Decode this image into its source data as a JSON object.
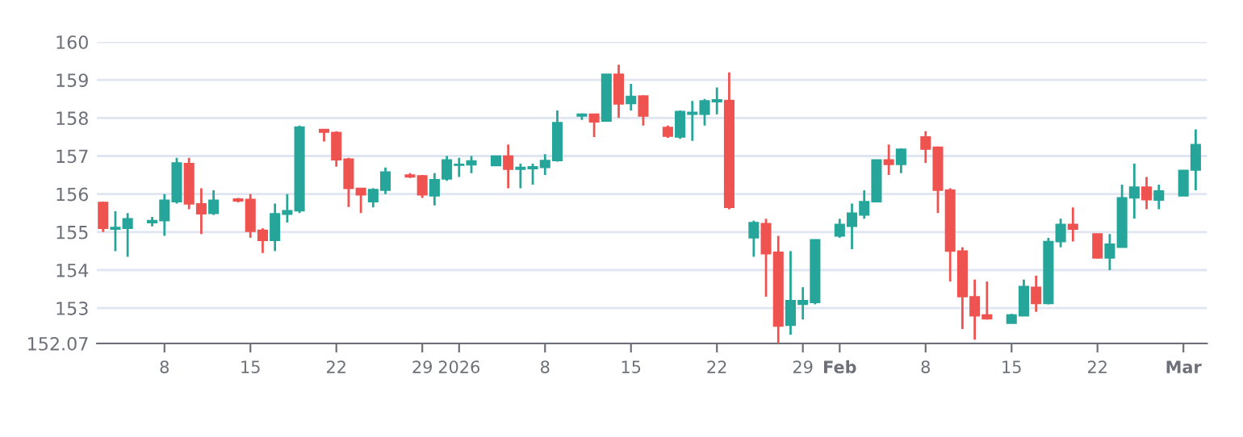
{
  "chart_data": {
    "type": "candlestick",
    "x": [
      "2025-12-03",
      "2025-12-04",
      "2025-12-05",
      "2025-12-07",
      "2025-12-08",
      "2025-12-09",
      "2025-12-10",
      "2025-12-11",
      "2025-12-12",
      "2025-12-14",
      "2025-12-15",
      "2025-12-16",
      "2025-12-17",
      "2025-12-18",
      "2025-12-19",
      "2025-12-21",
      "2025-12-22",
      "2025-12-23",
      "2025-12-24",
      "2025-12-25",
      "2025-12-26",
      "2025-12-28",
      "2025-12-29",
      "2025-12-30",
      "2025-12-31",
      "2026-01-01",
      "2026-01-02",
      "2026-01-04",
      "2026-01-05",
      "2026-01-06",
      "2026-01-07",
      "2026-01-08",
      "2026-01-09",
      "2026-01-11",
      "2026-01-12",
      "2026-01-13",
      "2026-01-14",
      "2026-01-15",
      "2026-01-16",
      "2026-01-18",
      "2026-01-19",
      "2026-01-20",
      "2026-01-21",
      "2026-01-22",
      "2026-01-23",
      "2026-01-25",
      "2026-01-26",
      "2026-01-27",
      "2026-01-28",
      "2026-01-29",
      "2026-01-30",
      "2026-02-01",
      "2026-02-02",
      "2026-02-03",
      "2026-02-04",
      "2026-02-05",
      "2026-02-06",
      "2026-02-08",
      "2026-02-09",
      "2026-02-10",
      "2026-02-11",
      "2026-02-12",
      "2026-02-13",
      "2026-02-15",
      "2026-02-16",
      "2026-02-17",
      "2026-02-18",
      "2026-02-19",
      "2026-02-20",
      "2026-02-22",
      "2026-02-23",
      "2026-02-24",
      "2026-02-25",
      "2026-02-26",
      "2026-02-27",
      "2026-03-01",
      "2026-03-02"
    ],
    "ohlc": [
      [
        155.78,
        155.8,
        155.0,
        155.1
      ],
      [
        155.08,
        155.55,
        154.5,
        155.12
      ],
      [
        155.1,
        155.5,
        154.35,
        155.35
      ],
      [
        155.25,
        155.4,
        155.15,
        155.3
      ],
      [
        155.3,
        156.0,
        154.9,
        155.84
      ],
      [
        155.8,
        156.95,
        155.75,
        156.82
      ],
      [
        156.8,
        156.95,
        155.6,
        155.74
      ],
      [
        155.74,
        156.15,
        154.95,
        155.48
      ],
      [
        155.49,
        156.1,
        155.45,
        155.84
      ],
      [
        155.87,
        155.9,
        155.78,
        155.82
      ],
      [
        155.86,
        156.0,
        154.85,
        155.02
      ],
      [
        155.05,
        155.1,
        154.45,
        154.78
      ],
      [
        154.78,
        155.75,
        154.5,
        155.48
      ],
      [
        155.47,
        156.0,
        155.25,
        155.56
      ],
      [
        155.56,
        157.8,
        155.5,
        157.76
      ],
      [
        157.7,
        157.7,
        157.38,
        157.63
      ],
      [
        157.62,
        157.65,
        156.72,
        156.9
      ],
      [
        156.92,
        156.95,
        155.66,
        156.15
      ],
      [
        156.15,
        156.15,
        155.5,
        155.98
      ],
      [
        155.8,
        156.15,
        155.65,
        156.12
      ],
      [
        156.1,
        156.7,
        156.0,
        156.58
      ],
      [
        156.5,
        156.55,
        156.42,
        156.45
      ],
      [
        156.48,
        156.5,
        155.9,
        155.98
      ],
      [
        155.95,
        156.55,
        155.7,
        156.38
      ],
      [
        156.4,
        157.0,
        156.35,
        156.9
      ],
      [
        156.76,
        156.95,
        156.45,
        156.78
      ],
      [
        156.77,
        157.0,
        156.55,
        156.87
      ],
      [
        156.75,
        157.0,
        156.75,
        157.0
      ],
      [
        157.0,
        157.3,
        156.15,
        156.65
      ],
      [
        156.65,
        156.8,
        156.15,
        156.7
      ],
      [
        156.67,
        156.8,
        156.25,
        156.72
      ],
      [
        156.7,
        157.05,
        156.5,
        156.88
      ],
      [
        156.88,
        158.2,
        156.85,
        157.88
      ],
      [
        158.05,
        158.12,
        157.95,
        158.1
      ],
      [
        158.1,
        158.1,
        157.5,
        157.9
      ],
      [
        157.92,
        159.15,
        157.9,
        159.15
      ],
      [
        159.15,
        159.4,
        158.0,
        158.37
      ],
      [
        158.38,
        158.9,
        158.2,
        158.57
      ],
      [
        158.58,
        158.6,
        157.8,
        158.05
      ],
      [
        157.75,
        157.8,
        157.48,
        157.52
      ],
      [
        157.5,
        158.2,
        157.45,
        158.17
      ],
      [
        158.1,
        158.45,
        157.4,
        158.15
      ],
      [
        158.1,
        158.5,
        157.8,
        158.45
      ],
      [
        158.43,
        158.8,
        158.1,
        158.48
      ],
      [
        158.46,
        159.2,
        155.6,
        155.65
      ],
      [
        154.85,
        155.3,
        154.35,
        155.25
      ],
      [
        155.22,
        155.35,
        153.3,
        154.43
      ],
      [
        154.47,
        154.9,
        152.08,
        152.53
      ],
      [
        152.55,
        154.5,
        152.3,
        153.2
      ],
      [
        153.1,
        153.55,
        152.7,
        153.2
      ],
      [
        153.15,
        154.8,
        153.1,
        154.8
      ],
      [
        154.9,
        155.35,
        154.85,
        155.2
      ],
      [
        155.15,
        155.75,
        154.55,
        155.5
      ],
      [
        155.45,
        156.1,
        155.35,
        155.8
      ],
      [
        155.8,
        156.9,
        155.8,
        156.9
      ],
      [
        156.9,
        157.3,
        156.5,
        156.78
      ],
      [
        156.78,
        157.2,
        156.55,
        157.18
      ],
      [
        157.5,
        157.65,
        156.82,
        157.18
      ],
      [
        157.23,
        157.25,
        155.5,
        156.1
      ],
      [
        156.1,
        156.15,
        153.7,
        154.5
      ],
      [
        154.5,
        154.6,
        152.45,
        153.3
      ],
      [
        153.3,
        153.75,
        152.17,
        152.8
      ],
      [
        152.82,
        153.7,
        152.7,
        152.72
      ],
      [
        152.6,
        152.85,
        152.6,
        152.82
      ],
      [
        152.8,
        153.75,
        152.8,
        153.57
      ],
      [
        153.55,
        153.85,
        152.9,
        153.12
      ],
      [
        153.12,
        154.85,
        153.1,
        154.75
      ],
      [
        154.75,
        155.35,
        154.6,
        155.2
      ],
      [
        155.2,
        155.65,
        154.75,
        155.08
      ],
      [
        154.95,
        154.95,
        154.3,
        154.32
      ],
      [
        154.32,
        154.95,
        154.0,
        154.68
      ],
      [
        154.6,
        156.25,
        154.6,
        155.9
      ],
      [
        155.9,
        156.8,
        155.35,
        156.18
      ],
      [
        156.18,
        156.45,
        155.6,
        155.85
      ],
      [
        155.84,
        156.25,
        155.6,
        156.08
      ],
      [
        155.95,
        156.62,
        155.95,
        156.62
      ],
      [
        156.63,
        157.7,
        156.1,
        157.3
      ]
    ],
    "colors": [
      "#ef5350",
      "#26a69a",
      "#26a69a",
      "#26a69a",
      "#26a69a",
      "#26a69a",
      "#ef5350",
      "#ef5350",
      "#26a69a",
      "#ef5350",
      "#ef5350",
      "#ef5350",
      "#26a69a",
      "#26a69a",
      "#26a69a",
      "#ef5350",
      "#ef5350",
      "#ef5350",
      "#ef5350",
      "#26a69a",
      "#26a69a",
      "#ef5350",
      "#ef5350",
      "#26a69a",
      "#26a69a",
      "#26a69a",
      "#26a69a",
      "#26a69a",
      "#ef5350",
      "#26a69a",
      "#26a69a",
      "#26a69a",
      "#26a69a",
      "#26a69a",
      "#ef5350",
      "#26a69a",
      "#ef5350",
      "#26a69a",
      "#ef5350",
      "#ef5350",
      "#26a69a",
      "#26a69a",
      "#26a69a",
      "#26a69a",
      "#ef5350",
      "#26a69a",
      "#ef5350",
      "#ef5350",
      "#26a69a",
      "#26a69a",
      "#26a69a",
      "#26a69a",
      "#26a69a",
      "#26a69a",
      "#26a69a",
      "#ef5350",
      "#26a69a",
      "#ef5350",
      "#ef5350",
      "#ef5350",
      "#ef5350",
      "#ef5350",
      "#ef5350",
      "#26a69a",
      "#26a69a",
      "#ef5350",
      "#26a69a",
      "#26a69a",
      "#ef5350",
      "#ef5350",
      "#26a69a",
      "#26a69a",
      "#26a69a",
      "#ef5350",
      "#26a69a",
      "#26a69a",
      "#26a69a"
    ],
    "xlim": [
      "2025-12-02T12:00",
      "2026-03-02T22:00"
    ],
    "xticks": [
      {
        "value": "2025-12-08",
        "label": "8"
      },
      {
        "value": "2025-12-15",
        "label": "15"
      },
      {
        "value": "2025-12-22",
        "label": "22"
      },
      {
        "value": "2025-12-29",
        "label": "29"
      },
      {
        "value": "2026-01-01",
        "label": "2026"
      },
      {
        "value": "2026-01-08",
        "label": "8"
      },
      {
        "value": "2026-01-15",
        "label": "15"
      },
      {
        "value": "2026-01-22",
        "label": "22"
      },
      {
        "value": "2026-01-29",
        "label": "29"
      },
      {
        "value": "2026-02-01",
        "label": "Feb"
      },
      {
        "value": "2026-02-08",
        "label": "8"
      },
      {
        "value": "2026-02-15",
        "label": "15"
      },
      {
        "value": "2026-02-22",
        "label": "22"
      },
      {
        "value": "2026-03-01",
        "label": "Mar"
      }
    ],
    "ylim": [
      152.07,
      160
    ],
    "yticks": [
      152.07,
      153,
      154,
      155,
      156,
      157,
      158,
      159,
      160
    ],
    "grid": "y"
  }
}
